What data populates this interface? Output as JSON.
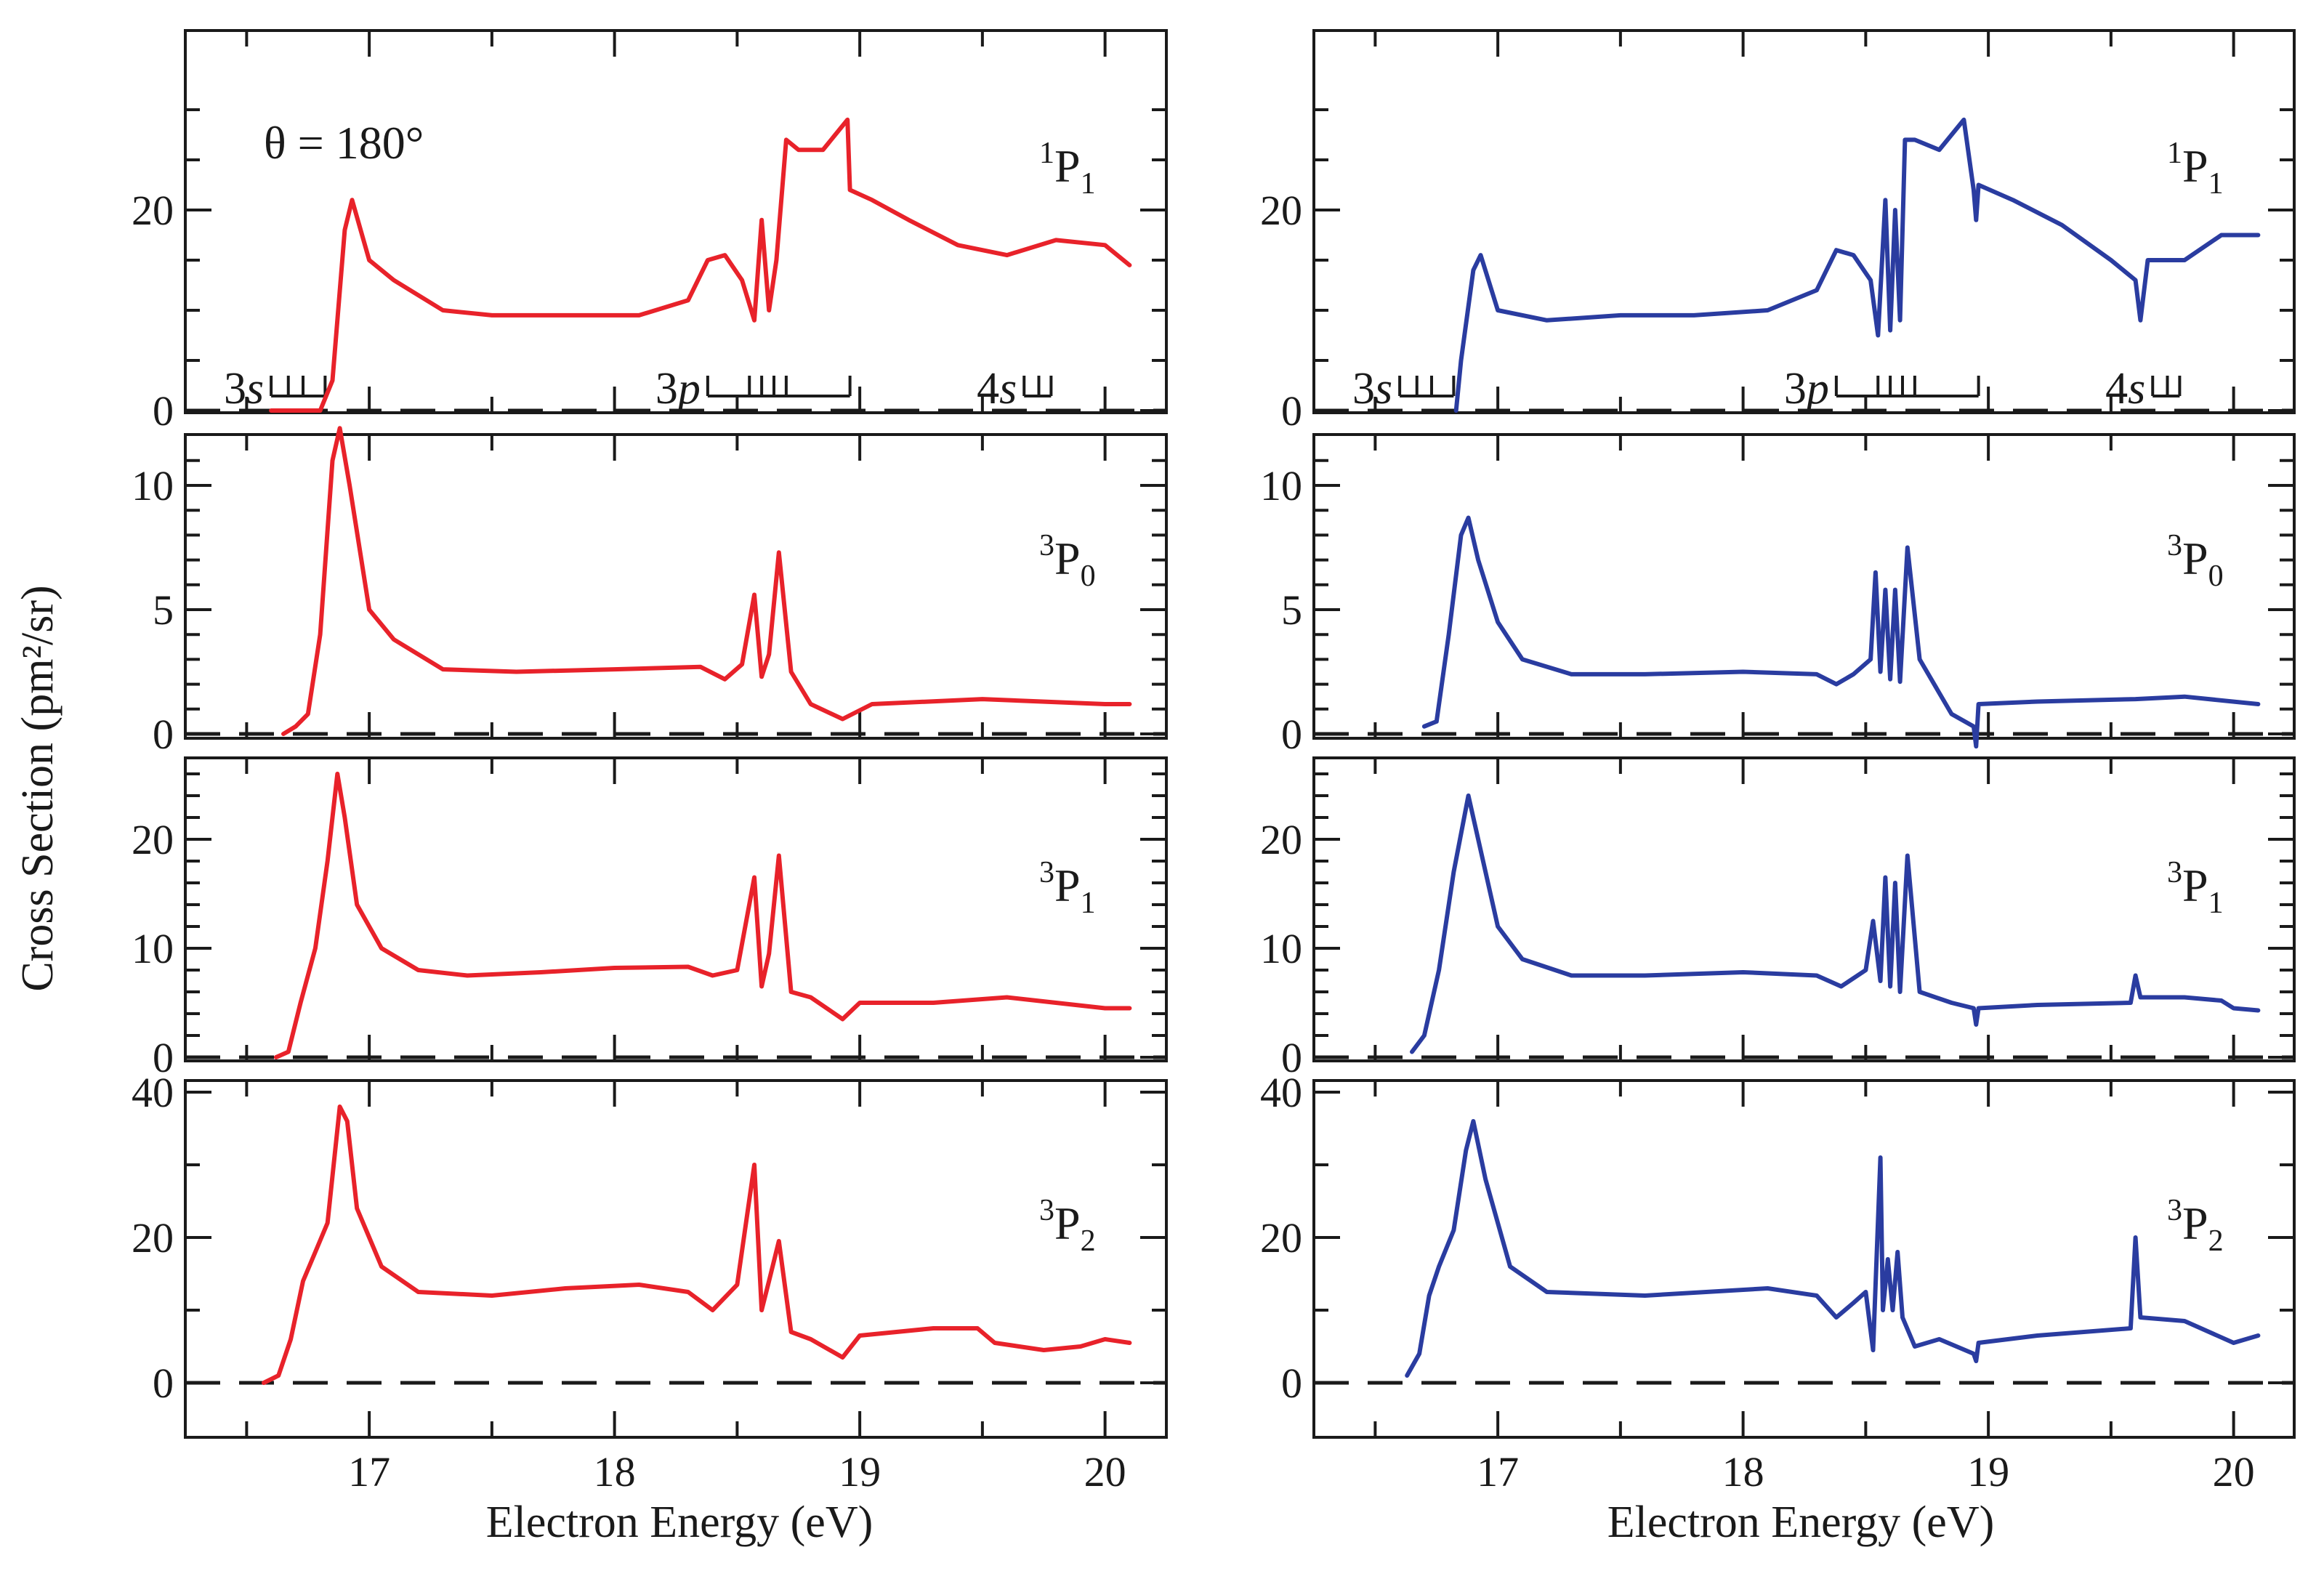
{
  "figure": {
    "y_axis_title": "Cross Section (pm²/sr)",
    "x_axis_title": "Electron Energy (eV)",
    "angle_label": "θ = 180°"
  },
  "chart_data": [
    {
      "type": "line",
      "column": "left",
      "state": "1P1",
      "label_sup": "1",
      "label_main": "P",
      "label_sub": "1",
      "color": "#e8222a",
      "xlim": [
        16.25,
        20.25
      ],
      "ylim": [
        0,
        30
      ],
      "yticks": [
        "0",
        "20"
      ],
      "xticks": [
        "17",
        "18",
        "19",
        "20"
      ],
      "series_markers": [
        {
          "name": "3s",
          "label": "3s",
          "positions": [
            16.6,
            16.67,
            16.73,
            16.82
          ]
        },
        {
          "name": "3p",
          "label": "3p",
          "positions": [
            18.38,
            18.55,
            18.6,
            18.65,
            18.7,
            18.96
          ]
        },
        {
          "name": "4s",
          "label": "4s",
          "positions": [
            19.67,
            19.73,
            19.78
          ]
        }
      ],
      "x": [
        16.6,
        16.8,
        16.85,
        16.9,
        16.93,
        17.0,
        17.1,
        17.3,
        17.5,
        17.7,
        17.9,
        18.1,
        18.3,
        18.38,
        18.45,
        18.52,
        18.57,
        18.6,
        18.63,
        18.66,
        18.7,
        18.75,
        18.85,
        18.95,
        18.96,
        19.05,
        19.2,
        19.4,
        19.6,
        19.8,
        20.0,
        20.1
      ],
      "y": [
        0,
        0,
        3,
        18,
        21,
        15,
        13,
        10,
        9.5,
        9.5,
        9.5,
        9.5,
        11,
        15,
        15.5,
        13,
        9,
        19,
        10,
        15,
        27,
        26,
        26,
        29,
        22,
        21,
        19,
        16.5,
        15.5,
        17,
        16.5,
        14.5
      ]
    },
    {
      "type": "line",
      "column": "right",
      "state": "1P1",
      "label_sup": "1",
      "label_main": "P",
      "label_sub": "1",
      "color": "#2a3ca0",
      "xlim": [
        16.25,
        20.25
      ],
      "ylim": [
        0,
        30
      ],
      "yticks": [
        "0",
        "20"
      ],
      "xticks": [
        "17",
        "18",
        "19",
        "20"
      ],
      "series_markers": [
        {
          "name": "3s",
          "label": "3s",
          "positions": [
            16.6,
            16.67,
            16.73,
            16.82
          ]
        },
        {
          "name": "3p",
          "label": "3p",
          "positions": [
            18.38,
            18.55,
            18.6,
            18.65,
            18.7,
            18.96
          ]
        },
        {
          "name": "4s",
          "label": "4s",
          "positions": [
            19.67,
            19.73,
            19.78
          ]
        }
      ],
      "x": [
        16.83,
        16.85,
        16.9,
        16.93,
        17.0,
        17.2,
        17.5,
        17.8,
        18.1,
        18.3,
        18.38,
        18.45,
        18.52,
        18.55,
        18.58,
        18.6,
        18.62,
        18.64,
        18.66,
        18.7,
        18.8,
        18.9,
        18.94,
        18.95,
        18.96,
        19.1,
        19.3,
        19.5,
        19.6,
        19.62,
        19.65,
        19.8,
        19.95,
        20.1
      ],
      "y": [
        0,
        5,
        14,
        15.5,
        10,
        9,
        9.5,
        9.5,
        10,
        12,
        16,
        15.5,
        13,
        7.5,
        21,
        8,
        20,
        9,
        27,
        27,
        26,
        29,
        22,
        19,
        22.5,
        21,
        18.5,
        15,
        13,
        9,
        15,
        15,
        17.5,
        17.5
      ]
    },
    {
      "type": "line",
      "column": "left",
      "state": "3P0",
      "label_sup": "3",
      "label_main": "P",
      "label_sub": "0",
      "color": "#e8222a",
      "xlim": [
        16.25,
        20.25
      ],
      "ylim": [
        0,
        12.5
      ],
      "yticks": [
        "0",
        "5",
        "10"
      ],
      "xticks": [
        "17",
        "18",
        "19",
        "20"
      ],
      "x": [
        16.65,
        16.7,
        16.75,
        16.8,
        16.85,
        16.88,
        16.92,
        17.0,
        17.1,
        17.3,
        17.6,
        18.0,
        18.35,
        18.45,
        18.52,
        18.57,
        18.6,
        18.63,
        18.67,
        18.72,
        18.8,
        18.93,
        19.05,
        19.5,
        20.0,
        20.1
      ],
      "y": [
        0,
        0.3,
        0.8,
        4,
        11,
        12.3,
        10,
        5,
        3.8,
        2.6,
        2.5,
        2.6,
        2.7,
        2.2,
        2.8,
        5.6,
        2.3,
        3.2,
        7.3,
        2.5,
        1.2,
        0.6,
        1.2,
        1.4,
        1.2,
        1.2
      ]
    },
    {
      "type": "line",
      "column": "right",
      "state": "3P0",
      "label_sup": "3",
      "label_main": "P",
      "label_sub": "0",
      "color": "#2a3ca0",
      "xlim": [
        16.25,
        20.25
      ],
      "ylim": [
        0,
        12.5
      ],
      "yticks": [
        "0",
        "5",
        "10"
      ],
      "xticks": [
        "17",
        "18",
        "19",
        "20"
      ],
      "x": [
        16.7,
        16.75,
        16.8,
        16.85,
        16.88,
        16.92,
        17.0,
        17.1,
        17.3,
        17.6,
        18.0,
        18.3,
        18.38,
        18.45,
        18.52,
        18.54,
        18.56,
        18.58,
        18.6,
        18.62,
        18.64,
        18.67,
        18.72,
        18.85,
        18.94,
        18.95,
        18.96,
        19.2,
        19.6,
        19.8,
        20.1
      ],
      "y": [
        0.3,
        0.5,
        4,
        8,
        8.7,
        7,
        4.5,
        3,
        2.4,
        2.4,
        2.5,
        2.4,
        2.0,
        2.4,
        3,
        6.5,
        2.5,
        5.8,
        2.2,
        5.8,
        2.1,
        7.5,
        3,
        0.8,
        0.3,
        -0.5,
        1.2,
        1.3,
        1.4,
        1.5,
        1.2
      ]
    },
    {
      "type": "line",
      "column": "left",
      "state": "3P1",
      "label_sup": "3",
      "label_main": "P",
      "label_sub": "1",
      "color": "#e8222a",
      "xlim": [
        16.25,
        20.25
      ],
      "ylim": [
        0,
        27
      ],
      "yticks": [
        "0",
        "10",
        "20"
      ],
      "xticks": [
        "17",
        "18",
        "19",
        "20"
      ],
      "x": [
        16.62,
        16.67,
        16.72,
        16.78,
        16.83,
        16.87,
        16.9,
        16.95,
        17.05,
        17.2,
        17.4,
        17.7,
        18.0,
        18.3,
        18.4,
        18.5,
        18.57,
        18.6,
        18.63,
        18.67,
        18.72,
        18.8,
        18.93,
        19.0,
        19.3,
        19.6,
        19.8,
        20.0,
        20.1
      ],
      "y": [
        0,
        0.5,
        5,
        10,
        18,
        26,
        22,
        14,
        10,
        8,
        7.5,
        7.8,
        8.2,
        8.3,
        7.5,
        8,
        16.5,
        6.5,
        9.5,
        18.5,
        6,
        5.5,
        3.5,
        5,
        5,
        5.5,
        5,
        4.5,
        4.5
      ]
    },
    {
      "type": "line",
      "column": "right",
      "state": "3P1",
      "label_sup": "3",
      "label_main": "P",
      "label_sub": "1",
      "color": "#2a3ca0",
      "xlim": [
        16.25,
        20.25
      ],
      "ylim": [
        0,
        27
      ],
      "yticks": [
        "0",
        "10",
        "20"
      ],
      "xticks": [
        "17",
        "18",
        "19",
        "20"
      ],
      "x": [
        16.65,
        16.7,
        16.76,
        16.82,
        16.88,
        16.92,
        17.0,
        17.1,
        17.3,
        17.6,
        18.0,
        18.3,
        18.4,
        18.5,
        18.53,
        18.56,
        18.58,
        18.6,
        18.62,
        18.64,
        18.67,
        18.72,
        18.85,
        18.94,
        18.95,
        18.96,
        19.2,
        19.58,
        19.6,
        19.62,
        19.8,
        19.95,
        20.0,
        20.1
      ],
      "y": [
        0.5,
        2,
        8,
        17,
        24,
        20,
        12,
        9,
        7.5,
        7.5,
        7.8,
        7.5,
        6.5,
        8,
        12.5,
        7,
        16.5,
        6.5,
        16,
        6,
        18.5,
        6,
        5,
        4.5,
        3,
        4.5,
        4.8,
        5,
        7.5,
        5.5,
        5.5,
        5.2,
        4.5,
        4.3
      ]
    },
    {
      "type": "line",
      "column": "left",
      "state": "3P2",
      "label_sup": "3",
      "label_main": "P",
      "label_sub": "2",
      "color": "#e8222a",
      "xlim": [
        16.25,
        20.25
      ],
      "ylim": [
        -7,
        42
      ],
      "yticks": [
        "0",
        "20",
        "40"
      ],
      "xticks": [
        "17",
        "18",
        "19",
        "20"
      ],
      "x": [
        16.57,
        16.63,
        16.68,
        16.73,
        16.78,
        16.83,
        16.88,
        16.91,
        16.95,
        17.05,
        17.2,
        17.5,
        17.8,
        18.1,
        18.3,
        18.4,
        18.5,
        18.57,
        18.6,
        18.63,
        18.67,
        18.72,
        18.8,
        18.93,
        19.0,
        19.3,
        19.48,
        19.55,
        19.75,
        19.9,
        20.0,
        20.1
      ],
      "y": [
        0,
        1,
        6,
        14,
        18,
        22,
        38,
        36,
        24,
        16,
        12.5,
        12,
        13,
        13.5,
        12.5,
        10,
        13.5,
        30,
        10,
        14,
        19.5,
        7,
        6,
        3.5,
        6.5,
        7.5,
        7.5,
        5.5,
        4.5,
        5,
        6,
        5.5
      ]
    },
    {
      "type": "line",
      "column": "right",
      "state": "3P2",
      "label_sup": "3",
      "label_main": "P",
      "label_sub": "2",
      "color": "#2a3ca0",
      "xlim": [
        16.25,
        20.25
      ],
      "ylim": [
        -7,
        42
      ],
      "yticks": [
        "0",
        "20",
        "40"
      ],
      "xticks": [
        "17",
        "18",
        "19",
        "20"
      ],
      "x": [
        16.63,
        16.68,
        16.72,
        16.76,
        16.82,
        16.87,
        16.9,
        16.95,
        17.05,
        17.2,
        17.6,
        18.1,
        18.3,
        18.38,
        18.45,
        18.5,
        18.53,
        18.56,
        18.57,
        18.59,
        18.61,
        18.63,
        18.65,
        18.7,
        18.8,
        18.94,
        18.95,
        18.96,
        19.2,
        19.58,
        19.6,
        19.62,
        19.8,
        20.0,
        20.1
      ],
      "y": [
        1,
        4,
        12,
        16,
        21,
        32,
        36,
        28,
        16,
        12.5,
        12,
        13,
        12,
        9,
        11,
        12.5,
        4.5,
        31,
        10,
        17,
        10,
        18,
        9,
        5,
        6,
        4,
        3,
        5.5,
        6.5,
        7.5,
        20,
        9,
        8.5,
        5.5,
        6.5
      ]
    }
  ]
}
